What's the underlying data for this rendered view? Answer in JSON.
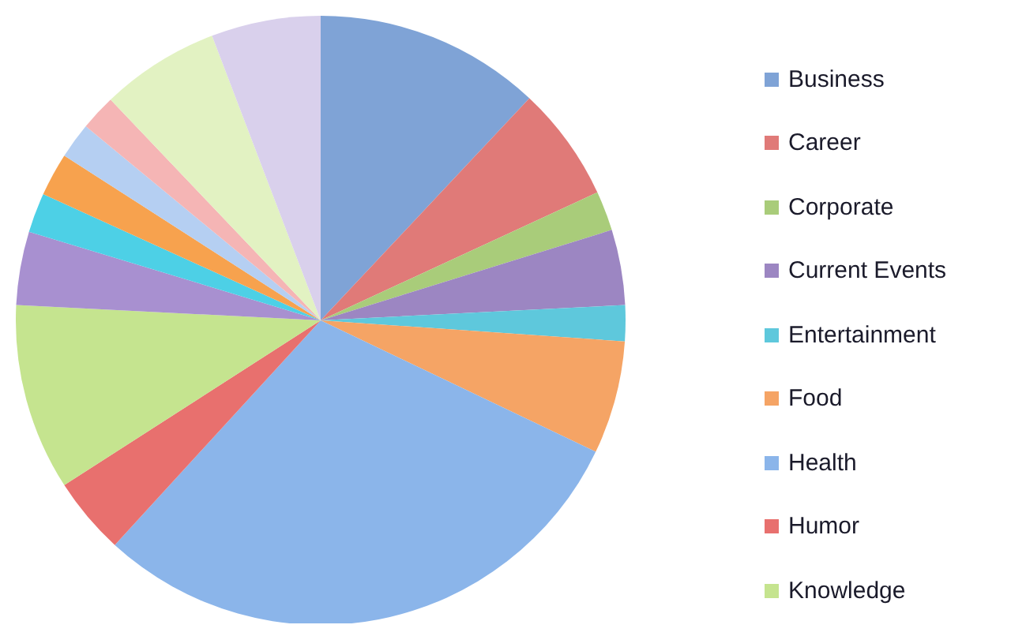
{
  "chart_data": {
    "type": "pie",
    "legend": "right",
    "categories": [
      "Business",
      "Career",
      "Corporate",
      "Current Events",
      "Entertainment",
      "Food",
      "Health",
      "Humor",
      "Knowledge",
      null,
      null,
      null,
      null,
      null,
      null,
      null
    ],
    "values": [
      12.0,
      6.1,
      2.1,
      4.0,
      1.9,
      6.0,
      29.7,
      4.1,
      9.9,
      3.9,
      2.1,
      2.3,
      1.9,
      1.9,
      6.3,
      5.8
    ],
    "colors": [
      "#7fa3d6",
      "#e07a78",
      "#a9cc7a",
      "#9c86c2",
      "#5ec8dc",
      "#f5a465",
      "#8bb5ea",
      "#e8706e",
      "#c5e48f",
      "#a890d0",
      "#4dd0e6",
      "#f7a24e",
      "#b5cff2",
      "#f5b5b5",
      "#e2f2c2",
      "#d9d0ec"
    ]
  }
}
